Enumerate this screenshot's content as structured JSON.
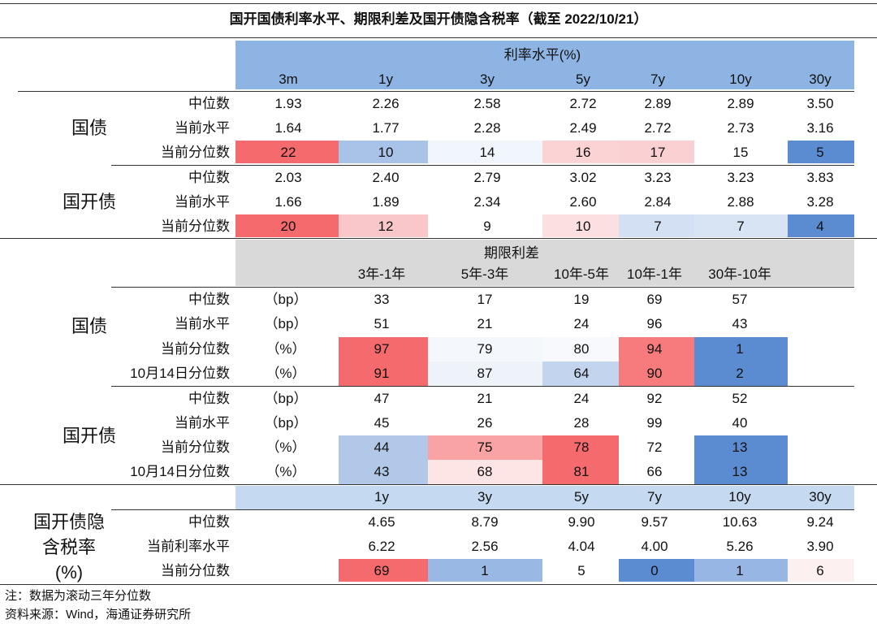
{
  "title": "国开国债利率水平、期限利差及国开债隐含税率（截至 2022/10/21）",
  "colors": {
    "dark_red": "#f56a6c",
    "mid_red": "#f9a3a4",
    "light_red": "#fde0e1",
    "blue_dark": "#5d8ed0",
    "blue_mid": "#9db9e4",
    "blue_light": "#dbe6f5",
    "header_blue": "#8eb4e3",
    "header_gray": "#d9d9d9",
    "header_light_blue": "#c5d9f1"
  },
  "s1": {
    "header": "利率水平(%)",
    "cols": [
      "3m",
      "1y",
      "3y",
      "5y",
      "7y",
      "10y",
      "30y"
    ],
    "groups": [
      {
        "name": "国债",
        "rows": [
          {
            "label": "中位数",
            "values": [
              "1.93",
              "2.26",
              "2.58",
              "2.72",
              "2.89",
              "2.89",
              "3.50"
            ]
          },
          {
            "label": "当前水平",
            "values": [
              "1.64",
              "1.77",
              "2.28",
              "2.49",
              "2.72",
              "2.73",
              "3.16"
            ]
          },
          {
            "label": "当前分位数",
            "values": [
              "22",
              "10",
              "14",
              "16",
              "17",
              "15",
              "5"
            ]
          }
        ]
      },
      {
        "name": "国开债",
        "rows": [
          {
            "label": "中位数",
            "values": [
              "2.03",
              "2.40",
              "2.79",
              "3.02",
              "3.23",
              "3.23",
              "3.83"
            ]
          },
          {
            "label": "当前水平",
            "values": [
              "1.66",
              "1.89",
              "2.34",
              "2.60",
              "2.84",
              "2.88",
              "3.28"
            ]
          },
          {
            "label": "当前分位数",
            "values": [
              "20",
              "12",
              "9",
              "10",
              "7",
              "7",
              "4"
            ]
          }
        ]
      }
    ]
  },
  "s2": {
    "header": "期限利差",
    "cols": [
      "3年-1年",
      "5年-3年",
      "10年-5年",
      "10年-1年",
      "30年-10年"
    ],
    "groups": [
      {
        "name": "国债",
        "rows": [
          {
            "label": "中位数",
            "unit": "（bp）",
            "values": [
              "33",
              "17",
              "19",
              "69",
              "57"
            ]
          },
          {
            "label": "当前水平",
            "unit": "（bp）",
            "values": [
              "51",
              "21",
              "24",
              "96",
              "43"
            ]
          },
          {
            "label": "当前分位数",
            "unit": "（%）",
            "values": [
              "97",
              "79",
              "80",
              "94",
              "1"
            ]
          },
          {
            "label": "10月14日分位数",
            "unit": "（%）",
            "values": [
              "91",
              "87",
              "64",
              "90",
              "2"
            ]
          }
        ]
      },
      {
        "name": "国开债",
        "rows": [
          {
            "label": "中位数",
            "unit": "（bp）",
            "values": [
              "47",
              "21",
              "24",
              "92",
              "52"
            ]
          },
          {
            "label": "当前水平",
            "unit": "（bp）",
            "values": [
              "45",
              "26",
              "28",
              "99",
              "40"
            ]
          },
          {
            "label": "当前分位数",
            "unit": "（%）",
            "values": [
              "44",
              "75",
              "78",
              "72",
              "13"
            ]
          },
          {
            "label": "10月14日分位数",
            "unit": "（%）",
            "values": [
              "43",
              "68",
              "81",
              "66",
              "13"
            ]
          }
        ]
      }
    ]
  },
  "s3": {
    "cols": [
      "1y",
      "3y",
      "5y",
      "7y",
      "10y",
      "30y"
    ],
    "name_lines": [
      "国开债隐",
      "含税率",
      "(%)"
    ],
    "rows": [
      {
        "label": "中位数",
        "values": [
          "4.65",
          "8.79",
          "9.90",
          "9.57",
          "10.63",
          "9.24"
        ]
      },
      {
        "label": "当前利率水平",
        "values": [
          "6.22",
          "2.56",
          "4.04",
          "4.00",
          "5.26",
          "3.90"
        ]
      },
      {
        "label": "当前分位数",
        "values": [
          "69",
          "1",
          "5",
          "0",
          "1",
          "6"
        ]
      }
    ]
  },
  "notes": {
    "note": "注：数据为滚动三年分位数",
    "source": "资料来源：Wind，海通证券研究所"
  }
}
